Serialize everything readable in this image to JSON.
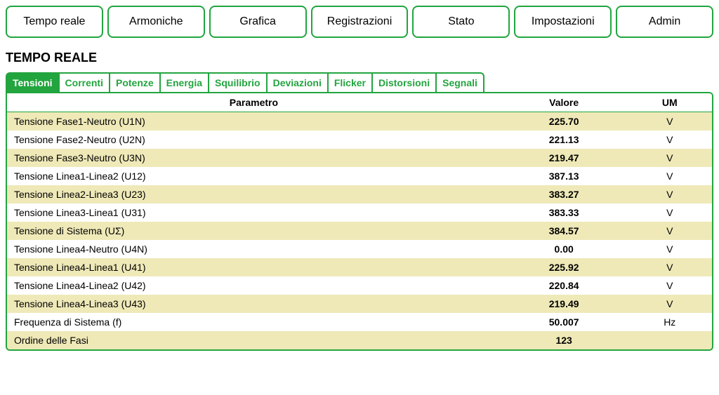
{
  "colors": {
    "accent": "#22a53f",
    "row_alt": "#efe9b8",
    "background": "#ffffff"
  },
  "topNav": [
    {
      "label": "Tempo reale"
    },
    {
      "label": "Armoniche"
    },
    {
      "label": "Grafica"
    },
    {
      "label": "Registrazioni"
    },
    {
      "label": "Stato"
    },
    {
      "label": "Impostazioni"
    },
    {
      "label": "Admin"
    }
  ],
  "pageTitle": "TEMPO REALE",
  "subTabs": [
    {
      "label": "Tensioni",
      "active": true
    },
    {
      "label": "Correnti",
      "active": false
    },
    {
      "label": "Potenze",
      "active": false
    },
    {
      "label": "Energia",
      "active": false
    },
    {
      "label": "Squilibrio",
      "active": false
    },
    {
      "label": "Deviazioni",
      "active": false
    },
    {
      "label": "Flicker",
      "active": false
    },
    {
      "label": "Distorsioni",
      "active": false
    },
    {
      "label": "Segnali",
      "active": false
    }
  ],
  "table": {
    "headers": {
      "param": "Parametro",
      "value": "Valore",
      "um": "UM"
    },
    "rows": [
      {
        "param": "Tensione Fase1-Neutro (U1N)",
        "value": "225.70",
        "um": "V"
      },
      {
        "param": "Tensione Fase2-Neutro (U2N)",
        "value": "221.13",
        "um": "V"
      },
      {
        "param": "Tensione Fase3-Neutro (U3N)",
        "value": "219.47",
        "um": "V"
      },
      {
        "param": "Tensione Linea1-Linea2 (U12)",
        "value": "387.13",
        "um": "V"
      },
      {
        "param": "Tensione Linea2-Linea3 (U23)",
        "value": "383.27",
        "um": "V"
      },
      {
        "param": "Tensione Linea3-Linea1 (U31)",
        "value": "383.33",
        "um": "V"
      },
      {
        "param": "Tensione di Sistema (UΣ)",
        "value": "384.57",
        "um": "V"
      },
      {
        "param": "Tensione Linea4-Neutro (U4N)",
        "value": "0.00",
        "um": "V"
      },
      {
        "param": "Tensione Linea4-Linea1 (U41)",
        "value": "225.92",
        "um": "V"
      },
      {
        "param": "Tensione Linea4-Linea2 (U42)",
        "value": "220.84",
        "um": "V"
      },
      {
        "param": "Tensione Linea4-Linea3 (U43)",
        "value": "219.49",
        "um": "V"
      },
      {
        "param": "Frequenza di Sistema (f)",
        "value": "50.007",
        "um": "Hz"
      },
      {
        "param": "Ordine delle Fasi",
        "value": "123",
        "um": ""
      }
    ]
  }
}
